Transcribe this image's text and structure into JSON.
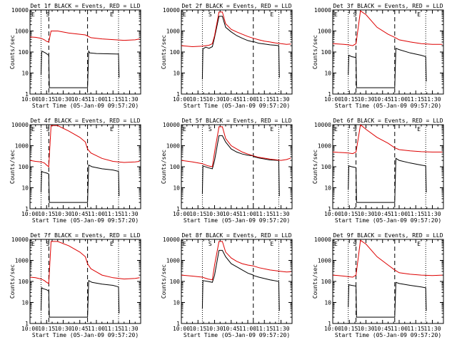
{
  "colors": {
    "events": "#000000",
    "lld": "#dd0000",
    "axis": "#000000",
    "background": "#ffffff"
  },
  "xlabel": "Start Time (05-Jan-09 09:57:20)",
  "ylabel": "Counts/sec",
  "x_tick_labels": [
    "10:00",
    "10:15",
    "10:30",
    "10:45",
    "11:00",
    "11:15",
    "11:30"
  ],
  "y_tick_labels": [
    "1",
    "10",
    "100",
    "1000",
    "10000"
  ],
  "markers": {
    "start_label": "S",
    "end_label": "E"
  },
  "chart_data": [
    {
      "type": "line",
      "title": "Det 1f BLACK = Events, RED = LLD",
      "x_unit": "minutes since 10:00",
      "xlim": [
        0,
        100
      ],
      "ylim": [
        1,
        10000
      ],
      "y_scale": "log",
      "vlines_dotted": [
        10,
        80
      ],
      "vlines_dashed": [
        17,
        52
      ],
      "series": [
        {
          "name": "Events",
          "x": [
            10,
            10.5,
            11,
            14,
            17,
            17.5,
            52,
            53,
            54,
            60,
            80,
            80.5
          ],
          "y": [
            8,
            90,
            110,
            90,
            70,
            2,
            2,
            110,
            90,
            85,
            80,
            6
          ]
        },
        {
          "name": "LLD",
          "x": [
            0,
            5,
            10,
            13,
            15,
            17,
            19,
            25,
            35,
            45,
            50,
            52,
            55,
            65,
            75,
            85,
            95,
            99
          ],
          "y": [
            520,
            500,
            450,
            380,
            320,
            300,
            1000,
            1000,
            800,
            700,
            650,
            580,
            480,
            420,
            390,
            360,
            380,
            420
          ]
        }
      ]
    },
    {
      "type": "line",
      "title": "Det 2f BLACK = Events, RED = LLD",
      "x_unit": "minutes since 10:00",
      "xlim": [
        0,
        100
      ],
      "ylim": [
        1,
        10000
      ],
      "y_scale": "log",
      "vlines_dotted": [
        19,
        88
      ],
      "vlines_dashed": [
        65
      ],
      "series": [
        {
          "name": "Events",
          "x": [
            19,
            19.5,
            22,
            25,
            28,
            30,
            34,
            37,
            40,
            45,
            50,
            55,
            60,
            65,
            65.5,
            70,
            75,
            80,
            85,
            88,
            88.5
          ],
          "y": [
            5,
            140,
            170,
            150,
            180,
            500,
            5000,
            5000,
            1500,
            900,
            600,
            450,
            350,
            300,
            310,
            260,
            240,
            220,
            210,
            200,
            6
          ]
        },
        {
          "name": "LLD",
          "x": [
            0,
            10,
            19,
            25,
            28,
            30,
            34,
            37,
            40,
            45,
            50,
            55,
            60,
            65,
            70,
            75,
            80,
            85,
            90,
            95,
            99
          ],
          "y": [
            200,
            180,
            190,
            210,
            250,
            600,
            8000,
            8000,
            2200,
            1200,
            900,
            700,
            550,
            450,
            380,
            330,
            300,
            270,
            250,
            230,
            240
          ]
        }
      ]
    },
    {
      "type": "line",
      "title": "Det 3f BLACK = Events, RED = LLD",
      "x_unit": "minutes since 10:00",
      "xlim": [
        0,
        100
      ],
      "ylim": [
        1,
        10000
      ],
      "y_scale": "log",
      "vlines_dotted": [
        14,
        84
      ],
      "vlines_dashed": [
        21,
        56
      ],
      "series": [
        {
          "name": "Events",
          "x": [
            14,
            14.5,
            17,
            21,
            21.5,
            56,
            57,
            60,
            70,
            80,
            84,
            84.5
          ],
          "y": [
            8,
            70,
            60,
            55,
            2,
            2,
            150,
            130,
            90,
            70,
            60,
            4
          ]
        },
        {
          "name": "LLD",
          "x": [
            0,
            5,
            10,
            14,
            18,
            21,
            25,
            30,
            40,
            50,
            56,
            60,
            70,
            80,
            90,
            99
          ],
          "y": [
            250,
            240,
            230,
            220,
            200,
            250,
            9000,
            6000,
            1500,
            700,
            500,
            380,
            300,
            250,
            230,
            230
          ]
        }
      ]
    },
    {
      "type": "line",
      "title": "Det 4f BLACK = Events, RED = LLD",
      "x_unit": "minutes since 10:00",
      "xlim": [
        0,
        100
      ],
      "ylim": [
        1,
        10000
      ],
      "y_scale": "log",
      "vlines_dotted": [
        10,
        80
      ],
      "vlines_dashed": [
        17,
        52
      ],
      "series": [
        {
          "name": "Events",
          "x": [
            10,
            10.5,
            12,
            15,
            17,
            17.5,
            52,
            53,
            56,
            65,
            75,
            80,
            80.5
          ],
          "y": [
            6,
            60,
            55,
            50,
            45,
            2,
            2,
            120,
            100,
            80,
            70,
            60,
            4
          ]
        },
        {
          "name": "LLD",
          "x": [
            0,
            5,
            10,
            13,
            15,
            17,
            19,
            25,
            35,
            45,
            50,
            52,
            55,
            65,
            75,
            85,
            95,
            99
          ],
          "y": [
            200,
            180,
            170,
            150,
            120,
            100,
            9000,
            9000,
            5000,
            2500,
            1500,
            700,
            450,
            250,
            180,
            160,
            170,
            180
          ]
        }
      ]
    },
    {
      "type": "line",
      "title": "Det 5f BLACK = Events, RED = LLD",
      "x_unit": "minutes since 10:00",
      "xlim": [
        0,
        100
      ],
      "ylim": [
        1,
        10000
      ],
      "y_scale": "log",
      "vlines_dotted": [
        19,
        88
      ],
      "vlines_dashed": [
        65
      ],
      "series": [
        {
          "name": "Events",
          "x": [
            19,
            19.5,
            24,
            28,
            30,
            34,
            37,
            40,
            45,
            50,
            55,
            60,
            65,
            65.5,
            70,
            80,
            88,
            88.5
          ],
          "y": [
            5,
            110,
            90,
            80,
            200,
            3000,
            3000,
            1500,
            700,
            500,
            400,
            350,
            330,
            300,
            260,
            210,
            200,
            4
          ]
        },
        {
          "name": "LLD",
          "x": [
            0,
            10,
            19,
            24,
            28,
            30,
            34,
            37,
            40,
            45,
            50,
            55,
            60,
            65,
            70,
            80,
            90,
            95,
            99
          ],
          "y": [
            200,
            170,
            140,
            110,
            100,
            500,
            8000,
            8000,
            2200,
            1000,
            700,
            500,
            400,
            330,
            280,
            230,
            200,
            220,
            260
          ]
        }
      ]
    },
    {
      "type": "line",
      "title": "Det 6f BLACK = Events, RED = LLD",
      "x_unit": "minutes since 10:00",
      "xlim": [
        0,
        100
      ],
      "ylim": [
        1,
        10000
      ],
      "y_scale": "log",
      "vlines_dotted": [
        14,
        84
      ],
      "vlines_dashed": [
        21,
        56
      ],
      "series": [
        {
          "name": "Events",
          "x": [
            14,
            14.5,
            17,
            21,
            21.5,
            56,
            57,
            60,
            70,
            80,
            84,
            84.5
          ],
          "y": [
            8,
            110,
            100,
            90,
            2,
            2,
            250,
            200,
            150,
            120,
            110,
            6
          ]
        },
        {
          "name": "LLD",
          "x": [
            0,
            5,
            10,
            14,
            18,
            21,
            25,
            30,
            40,
            50,
            56,
            60,
            70,
            80,
            90,
            99
          ],
          "y": [
            500,
            480,
            470,
            450,
            420,
            500,
            10000,
            6000,
            2500,
            1300,
            800,
            650,
            570,
            520,
            500,
            500
          ]
        }
      ]
    },
    {
      "type": "line",
      "title": "Det 7f BLACK = Events, RED = LLD",
      "x_unit": "minutes since 10:00",
      "xlim": [
        0,
        100
      ],
      "ylim": [
        1,
        10000
      ],
      "y_scale": "log",
      "vlines_dotted": [
        10,
        80
      ],
      "vlines_dashed": [
        17,
        52
      ],
      "series": [
        {
          "name": "Events",
          "x": [
            10,
            10.5,
            12,
            15,
            17,
            17.5,
            52,
            53,
            56,
            65,
            75,
            80,
            80.5
          ],
          "y": [
            4,
            50,
            45,
            40,
            35,
            2,
            2,
            110,
            90,
            75,
            65,
            55,
            3
          ]
        },
        {
          "name": "LLD",
          "x": [
            0,
            5,
            10,
            13,
            15,
            17,
            19,
            25,
            35,
            45,
            50,
            52,
            55,
            65,
            75,
            85,
            95,
            99
          ],
          "y": [
            160,
            150,
            130,
            110,
            90,
            80,
            8000,
            8000,
            5000,
            2500,
            1500,
            700,
            400,
            200,
            150,
            130,
            140,
            150
          ]
        }
      ]
    },
    {
      "type": "line",
      "title": "Det 8f BLACK = Events, RED = LLD",
      "x_unit": "minutes since 10:00",
      "xlim": [
        0,
        100
      ],
      "ylim": [
        1,
        10000
      ],
      "y_scale": "log",
      "vlines_dotted": [
        19,
        88
      ],
      "vlines_dashed": [
        65
      ],
      "series": [
        {
          "name": "Events",
          "x": [
            19,
            19.5,
            24,
            28,
            30,
            34,
            37,
            40,
            45,
            50,
            55,
            60,
            65,
            65.5,
            70,
            80,
            88,
            88.5
          ],
          "y": [
            5,
            110,
            100,
            90,
            200,
            3000,
            3000,
            1500,
            700,
            500,
            350,
            250,
            200,
            190,
            160,
            120,
            100,
            4
          ]
        },
        {
          "name": "LLD",
          "x": [
            0,
            10,
            19,
            24,
            28,
            30,
            34,
            37,
            40,
            45,
            50,
            55,
            60,
            65,
            70,
            80,
            90,
            95,
            99
          ],
          "y": [
            200,
            180,
            160,
            130,
            120,
            600,
            8000,
            8000,
            2500,
            1300,
            900,
            700,
            600,
            550,
            450,
            350,
            300,
            280,
            290
          ]
        }
      ]
    },
    {
      "type": "line",
      "title": "Det 9f BLACK = Events, RED = LLD",
      "x_unit": "minutes since 10:00",
      "xlim": [
        0,
        100
      ],
      "ylim": [
        1,
        10000
      ],
      "y_scale": "log",
      "vlines_dotted": [
        14,
        84
      ],
      "vlines_dashed": [
        21,
        56
      ],
      "series": [
        {
          "name": "Events",
          "x": [
            14,
            14.5,
            17,
            21,
            21.5,
            56,
            57,
            60,
            70,
            80,
            84,
            84.5
          ],
          "y": [
            6,
            70,
            65,
            60,
            2,
            2,
            90,
            80,
            65,
            55,
            50,
            4
          ]
        },
        {
          "name": "LLD",
          "x": [
            0,
            5,
            10,
            14,
            18,
            21,
            25,
            30,
            40,
            50,
            56,
            60,
            70,
            80,
            90,
            99
          ],
          "y": [
            200,
            190,
            180,
            170,
            160,
            200,
            9000,
            6000,
            1500,
            600,
            350,
            260,
            220,
            200,
            190,
            200
          ]
        }
      ]
    }
  ]
}
